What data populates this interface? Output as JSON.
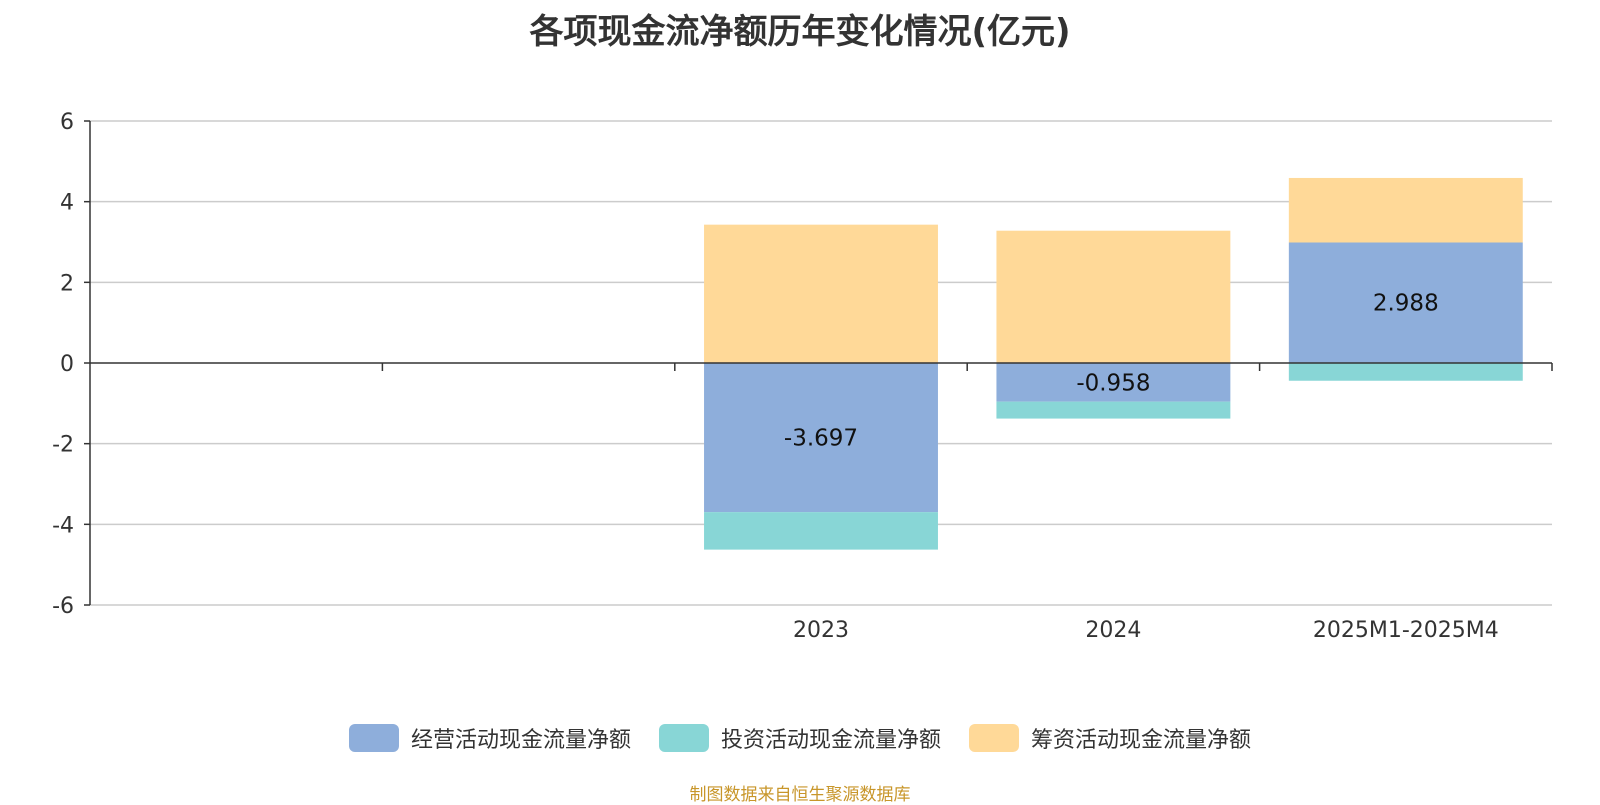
{
  "chart_data": {
    "type": "bar",
    "stacked": true,
    "title": "各项现金流净额历年变化情况(亿元)",
    "categories": [
      "",
      "",
      "2023",
      "2024",
      "2025M1-2025M4"
    ],
    "ylim": [
      -6,
      6
    ],
    "yticks": [
      6,
      4,
      2,
      0,
      -2,
      -4,
      -6
    ],
    "grid": true,
    "legend_position": "bottom",
    "series": [
      {
        "name": "经营活动现金流量净额",
        "color": "#8eaedb",
        "values": [
          null,
          null,
          -3.697,
          -0.958,
          2.988
        ],
        "labels": [
          "",
          "",
          "-3.697",
          "-0.958",
          "2.988"
        ]
      },
      {
        "name": "投资活动现金流量净额",
        "color": "#88d6d6",
        "values": [
          null,
          null,
          -0.93,
          -0.42,
          -0.44
        ]
      },
      {
        "name": "筹资活动现金流量净额",
        "color": "#ffd998",
        "values": [
          null,
          null,
          3.43,
          3.28,
          1.6
        ]
      }
    ]
  },
  "source": "制图数据来自恒生聚源数据库"
}
